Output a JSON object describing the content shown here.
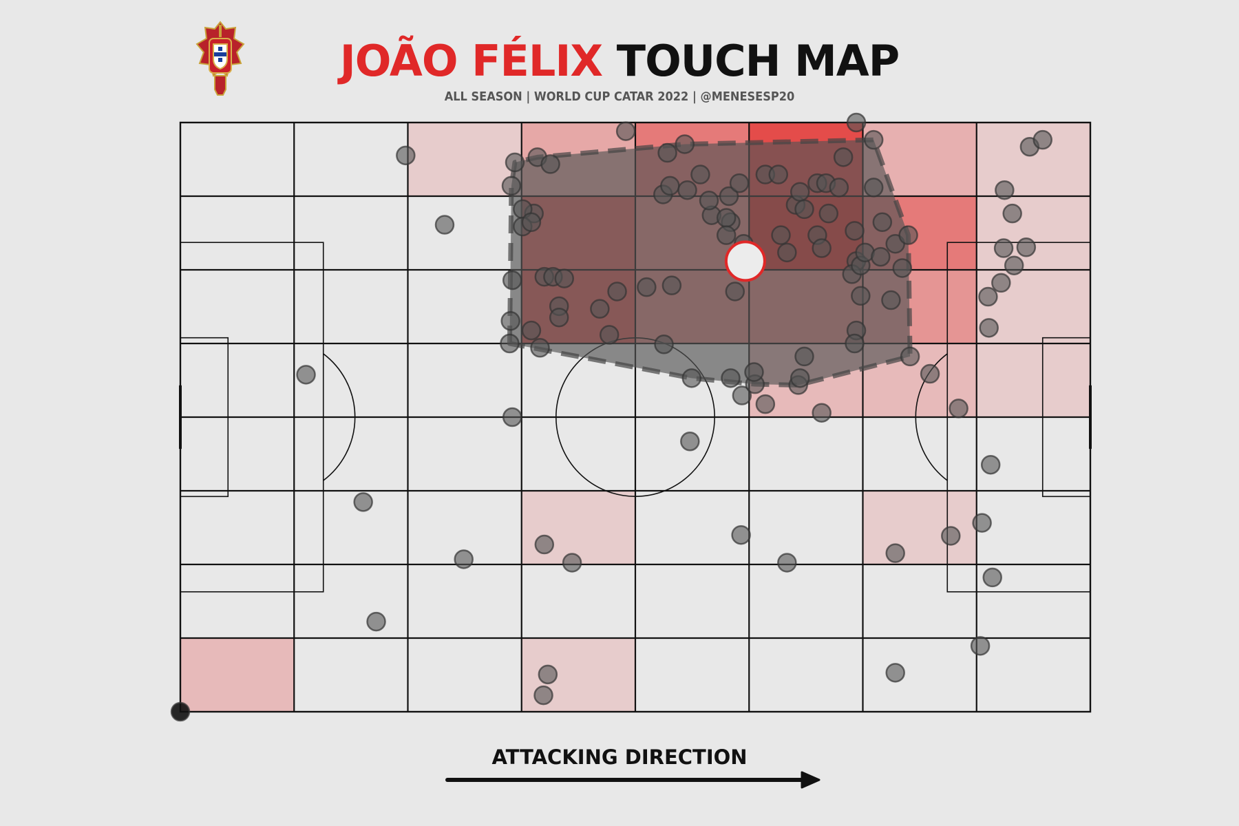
{
  "header": {
    "title_player": "JOÃO FÉLIX",
    "title_rest": "TOUCH MAP",
    "subtitle": "ALL SEASON | WORLD CUP CATAR 2022 | @MENESESP20"
  },
  "footer": {
    "direction_label": "ATTACKING DIRECTION"
  },
  "colors": {
    "accent": "#e02828",
    "heat_max": "#e3302e",
    "pitch_bg": "#e8e8e8",
    "hull": "#555555",
    "point": "#555555"
  },
  "icons": {
    "logo": "portugal-federation-crest-icon",
    "arrow": "arrow-right-icon"
  },
  "chart_data": {
    "type": "scatter",
    "pitch": {
      "length": 105,
      "width": 68,
      "attack_direction": "left-to-right"
    },
    "heatmap": {
      "bins_x": 8,
      "bins_y": 8,
      "intensity": [
        [
          0,
          0,
          0.15,
          0.35,
          0.6,
          0.85,
          0.3,
          0.15
        ],
        [
          0,
          0,
          0,
          0.7,
          0.5,
          0.95,
          0.6,
          0.15
        ],
        [
          0,
          0,
          0,
          0.75,
          0.5,
          0.5,
          0.45,
          0.15
        ],
        [
          0,
          0,
          0,
          0,
          0,
          0.25,
          0.25,
          0.15
        ],
        [
          0,
          0,
          0,
          0,
          0,
          0,
          0,
          0
        ],
        [
          0,
          0,
          0,
          0.15,
          0,
          0,
          0.15,
          0
        ],
        [
          0,
          0,
          0,
          0,
          0,
          0,
          0,
          0
        ],
        [
          0.25,
          0,
          0,
          0.15,
          0,
          0,
          0,
          0
        ]
      ]
    },
    "average_position": {
      "x": 65.2,
      "y": 52
    },
    "touches": [
      [
        0,
        0
      ],
      [
        26,
        64.2
      ],
      [
        30.5,
        56.2
      ],
      [
        14.5,
        38.9
      ],
      [
        38.3,
        34
      ],
      [
        21.1,
        24.2
      ],
      [
        32.7,
        17.6
      ],
      [
        22.6,
        10.4
      ],
      [
        38.6,
        63.4
      ],
      [
        38.2,
        60.7
      ],
      [
        41.2,
        64
      ],
      [
        42.7,
        63.2
      ],
      [
        40.8,
        57.5
      ],
      [
        39.5,
        58
      ],
      [
        51.4,
        67
      ],
      [
        38.3,
        49.8
      ],
      [
        39.5,
        56
      ],
      [
        40.5,
        56.5
      ],
      [
        42,
        50.2
      ],
      [
        43,
        50.2
      ],
      [
        44.3,
        50
      ],
      [
        43.7,
        46.8
      ],
      [
        43.7,
        45.5
      ],
      [
        48.4,
        46.5
      ],
      [
        49.5,
        43.5
      ],
      [
        50.4,
        48.5
      ],
      [
        38.1,
        45.1
      ],
      [
        38,
        42.5
      ],
      [
        40.5,
        44
      ],
      [
        41.5,
        42
      ],
      [
        53.8,
        49
      ],
      [
        55.7,
        59.7
      ],
      [
        56.5,
        60.7
      ],
      [
        56.2,
        64.5
      ],
      [
        58.5,
        60.2
      ],
      [
        58.2,
        65.5
      ],
      [
        60,
        62
      ],
      [
        61.3,
        57.3
      ],
      [
        63.5,
        56.5
      ],
      [
        63.3,
        59.5
      ],
      [
        64.5,
        61
      ],
      [
        61,
        59
      ],
      [
        63,
        57
      ],
      [
        63,
        55
      ],
      [
        65,
        54
      ],
      [
        67.5,
        62
      ],
      [
        69,
        62
      ],
      [
        71,
        58.5
      ],
      [
        71.5,
        60
      ],
      [
        73.5,
        61
      ],
      [
        74.5,
        61
      ],
      [
        76,
        60.5
      ],
      [
        76.5,
        64
      ],
      [
        78,
        68
      ],
      [
        80,
        66
      ],
      [
        74.8,
        57.5
      ],
      [
        73.5,
        55
      ],
      [
        77.8,
        55.5
      ],
      [
        78,
        52
      ],
      [
        70,
        53
      ],
      [
        69.3,
        55
      ],
      [
        72,
        58
      ],
      [
        74,
        53.5
      ],
      [
        78.5,
        48
      ],
      [
        78,
        44
      ],
      [
        77.5,
        50.5
      ],
      [
        78.5,
        51.5
      ],
      [
        79,
        53
      ],
      [
        80,
        60.5
      ],
      [
        81,
        56.5
      ],
      [
        80.8,
        52.5
      ],
      [
        82.5,
        54
      ],
      [
        83.3,
        51.2
      ],
      [
        84,
        55
      ],
      [
        82,
        47.5
      ],
      [
        65.5,
        52
      ],
      [
        64,
        48.5
      ],
      [
        56.7,
        49.2
      ],
      [
        55.8,
        42.4
      ],
      [
        59,
        38.5
      ],
      [
        63.5,
        38.5
      ],
      [
        64.8,
        36.5
      ],
      [
        66.3,
        37.8
      ],
      [
        67.5,
        35.5
      ],
      [
        66.2,
        39.2
      ],
      [
        71.3,
        37.7
      ],
      [
        71.5,
        38.5
      ],
      [
        74,
        34.5
      ],
      [
        72,
        41
      ],
      [
        77.8,
        42.5
      ],
      [
        86.5,
        39
      ],
      [
        84.2,
        41
      ],
      [
        89.8,
        35
      ],
      [
        93.5,
        28.5
      ],
      [
        92.5,
        21.8
      ],
      [
        93.7,
        15.5
      ],
      [
        92.3,
        7.6
      ],
      [
        93.2,
        47.9
      ],
      [
        93.3,
        44.3
      ],
      [
        94.7,
        49.5
      ],
      [
        95,
        53.5
      ],
      [
        96.2,
        51.5
      ],
      [
        97.6,
        53.6
      ],
      [
        96,
        57.5
      ],
      [
        95.1,
        60.2
      ],
      [
        98,
        65.2
      ],
      [
        99.5,
        66
      ],
      [
        58.8,
        31.2
      ],
      [
        64.7,
        20.4
      ],
      [
        70,
        17.2
      ],
      [
        82.5,
        18.3
      ],
      [
        88.9,
        20.3
      ],
      [
        82.5,
        4.5
      ],
      [
        42,
        19.3
      ],
      [
        45.2,
        17.2
      ],
      [
        42.4,
        4.3
      ],
      [
        41.9,
        1.9
      ]
    ]
  }
}
